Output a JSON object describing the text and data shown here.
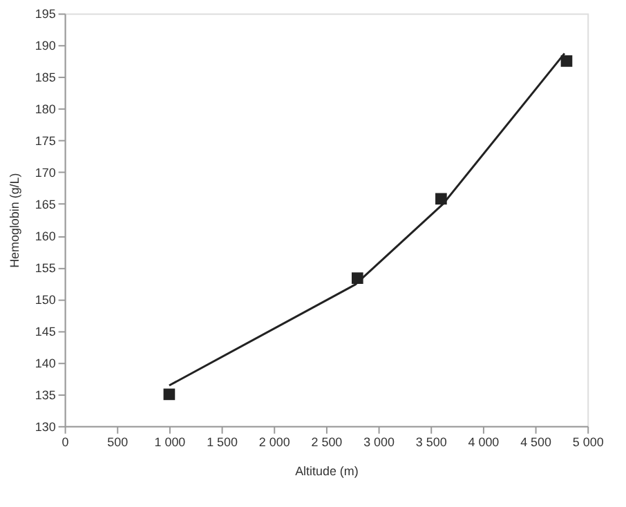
{
  "chart_data": {
    "type": "scatter",
    "xlabel": "Altitude (m)",
    "ylabel": "Hemoglobin (g/L)",
    "xlim": [
      0,
      5000
    ],
    "ylim": [
      130,
      195
    ],
    "xticks": [
      0,
      500,
      {
        "value": 1000,
        "label": "1 000"
      },
      {
        "value": 1500,
        "label": "1 500"
      },
      {
        "value": 2000,
        "label": "2 000"
      },
      {
        "value": 2500,
        "label": "2 500"
      },
      {
        "value": 3000,
        "label": "3 000"
      },
      {
        "value": 3500,
        "label": "3 500"
      },
      {
        "value": 4000,
        "label": "4 000"
      },
      {
        "value": 4500,
        "label": "4 500"
      },
      {
        "value": 5000,
        "label": "5 000"
      }
    ],
    "yticks": [
      130,
      135,
      140,
      145,
      150,
      155,
      160,
      165,
      170,
      175,
      180,
      185,
      190,
      195
    ],
    "grid": false,
    "series": [
      {
        "color": "#222222",
        "marker": "square",
        "x": [
          1000,
          2800,
          3600,
          4800
        ],
        "values": [
          135,
          153.3,
          165.8,
          187.5
        ]
      },
      {
        "type": "line",
        "color": "#222222",
        "marker": "none",
        "line_style": "solid",
        "x": [
          1000,
          2780,
          3620,
          4780
        ],
        "values": [
          136.4,
          152.3,
          165,
          188.7
        ]
      }
    ]
  }
}
